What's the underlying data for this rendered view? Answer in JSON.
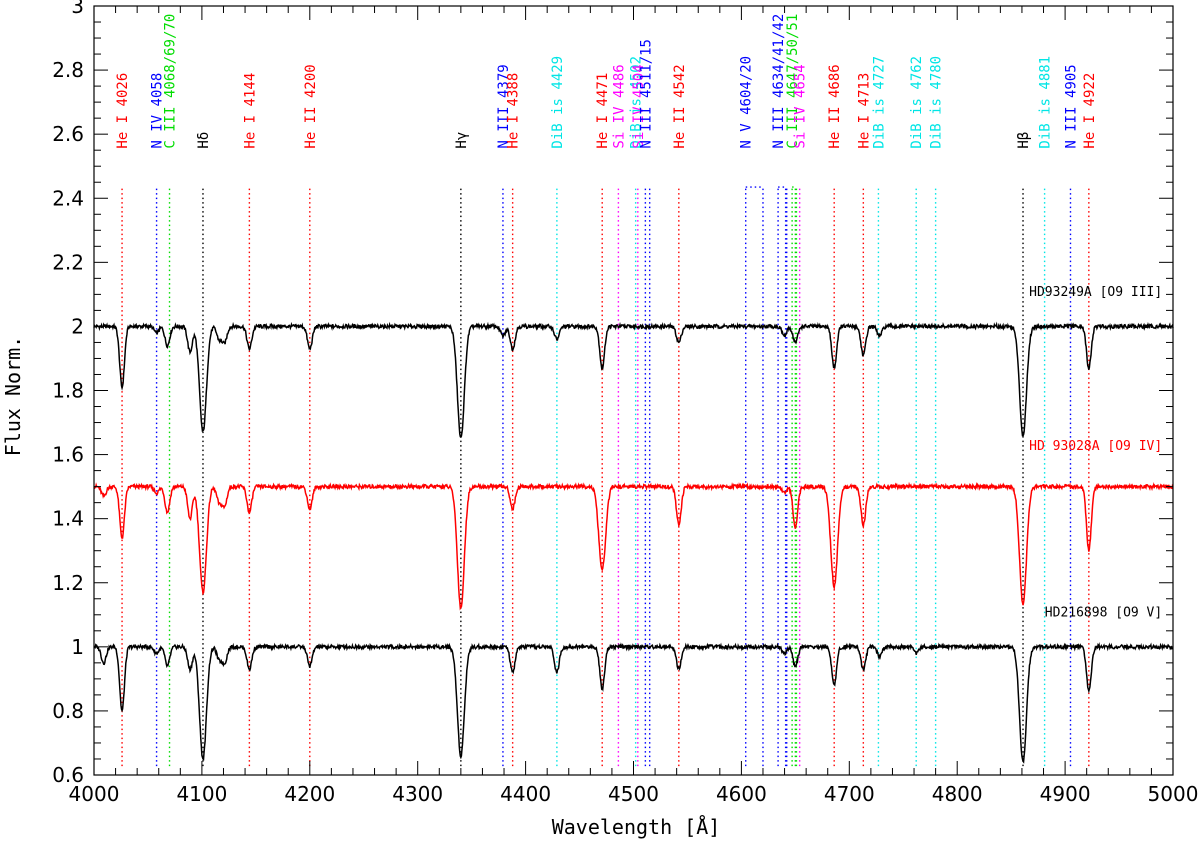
{
  "chart_data": {
    "type": "line",
    "xlabel": "Wavelength [Å]",
    "ylabel": "Flux Norm.",
    "xlim": [
      4000,
      5000
    ],
    "ylim": [
      0.6,
      3.0
    ],
    "x_ticks": [
      4000,
      4100,
      4200,
      4300,
      4400,
      4500,
      4600,
      4700,
      4800,
      4900,
      5000
    ],
    "y_ticks": [
      0.6,
      0.8,
      1,
      1.2,
      1.4,
      1.6,
      1.8,
      2,
      2.2,
      2.4,
      2.6,
      2.8,
      3
    ],
    "grid": false,
    "series": [
      {
        "name": "HD93249A [O9 III]",
        "color": "#000000",
        "continuum": 2.0,
        "lines": [
          [
            4026,
            0.19
          ],
          [
            4058,
            0.02
          ],
          [
            4068,
            0.06
          ],
          [
            4089,
            0.08
          ],
          [
            4101,
            0.33
          ],
          [
            4116,
            0.04
          ],
          [
            4121,
            0.05
          ],
          [
            4144,
            0.07
          ],
          [
            4200,
            0.07
          ],
          [
            4340,
            0.35
          ],
          [
            4379,
            0.03
          ],
          [
            4388,
            0.07
          ],
          [
            4429,
            0.04
          ],
          [
            4471,
            0.13
          ],
          [
            4542,
            0.05
          ],
          [
            4640,
            0.03
          ],
          [
            4650,
            0.05
          ],
          [
            4686,
            0.13
          ],
          [
            4713,
            0.09
          ],
          [
            4728,
            0.03
          ],
          [
            4861,
            0.34
          ],
          [
            4922,
            0.13
          ]
        ]
      },
      {
        "name": "HD 93028A  [O9 IV]",
        "color": "#ff0000",
        "continuum": 1.5,
        "lines": [
          [
            4009,
            0.03
          ],
          [
            4026,
            0.16
          ],
          [
            4058,
            0.02
          ],
          [
            4068,
            0.08
          ],
          [
            4089,
            0.1
          ],
          [
            4101,
            0.33
          ],
          [
            4116,
            0.05
          ],
          [
            4121,
            0.06
          ],
          [
            4144,
            0.08
          ],
          [
            4200,
            0.07
          ],
          [
            4340,
            0.38
          ],
          [
            4388,
            0.07
          ],
          [
            4471,
            0.26
          ],
          [
            4542,
            0.12
          ],
          [
            4640,
            0.02
          ],
          [
            4650,
            0.13
          ],
          [
            4686,
            0.31
          ],
          [
            4713,
            0.12
          ],
          [
            4861,
            0.37
          ],
          [
            4922,
            0.2
          ]
        ]
      },
      {
        "name": "HD216898 [O9 V]",
        "color": "#000000",
        "continuum": 1.0,
        "lines": [
          [
            4009,
            0.05
          ],
          [
            4026,
            0.2
          ],
          [
            4058,
            0.02
          ],
          [
            4068,
            0.06
          ],
          [
            4089,
            0.07
          ],
          [
            4101,
            0.35
          ],
          [
            4116,
            0.04
          ],
          [
            4121,
            0.05
          ],
          [
            4144,
            0.07
          ],
          [
            4200,
            0.06
          ],
          [
            4340,
            0.34
          ],
          [
            4388,
            0.08
          ],
          [
            4429,
            0.08
          ],
          [
            4471,
            0.13
          ],
          [
            4542,
            0.07
          ],
          [
            4640,
            0.02
          ],
          [
            4650,
            0.06
          ],
          [
            4686,
            0.12
          ],
          [
            4713,
            0.07
          ],
          [
            4728,
            0.03
          ],
          [
            4762,
            0.02
          ],
          [
            4861,
            0.36
          ],
          [
            4922,
            0.14
          ]
        ]
      }
    ],
    "line_ids": [
      {
        "wl": 4026,
        "label": "He I 4026",
        "color": "#ff0000"
      },
      {
        "wl": 4058,
        "label": "N IV 4058",
        "color": "#0000ff"
      },
      {
        "wl": 4070,
        "label": "C III 4068/69/70",
        "color": "#00dd00"
      },
      {
        "wl": 4101,
        "label": "Hδ",
        "color": "#000000"
      },
      {
        "wl": 4144,
        "label": "He I 4144",
        "color": "#ff0000"
      },
      {
        "wl": 4200,
        "label": "He II 4200",
        "color": "#ff0000"
      },
      {
        "wl": 4340,
        "label": "Hγ",
        "color": "#000000"
      },
      {
        "wl": 4379,
        "label": "N III 4379",
        "color": "#0000ff"
      },
      {
        "wl": 4388,
        "label": "He I 4388",
        "color": "#ff0000"
      },
      {
        "wl": 4429,
        "label": "DiB is 4429",
        "color": "#00e5e5"
      },
      {
        "wl": 4471,
        "label": "He I 4471",
        "color": "#ff0000"
      },
      {
        "wl": 4486,
        "label": "Si IV 4486",
        "color": "#ff00ff"
      },
      {
        "wl": 4502,
        "label": "DiB is 4502",
        "color": "#00e5e5"
      },
      {
        "wl": 4504,
        "label": "Si IV 4504",
        "color": "#ff00ff"
      },
      {
        "wl": 4511,
        "label": "N III 4511/15",
        "color": "#0000ff"
      },
      {
        "wl": 4542,
        "label": "He II 4542",
        "color": "#ff0000"
      },
      {
        "wl": 4604,
        "label": "N V 4604/20",
        "color": "#0000ff"
      },
      {
        "wl": 4634,
        "label": "N III 4634/41/42",
        "color": "#0000ff"
      },
      {
        "wl": 4647,
        "label": "C III 4647/50/51",
        "color": "#00dd00"
      },
      {
        "wl": 4654,
        "label": "Si IV 4654",
        "color": "#ff00ff"
      },
      {
        "wl": 4686,
        "label": "He II 4686",
        "color": "#ff0000"
      },
      {
        "wl": 4713,
        "label": "He I 4713",
        "color": "#ff0000"
      },
      {
        "wl": 4727,
        "label": "DiB is 4727",
        "color": "#00e5e5"
      },
      {
        "wl": 4762,
        "label": "DiB is 4762",
        "color": "#00e5e5"
      },
      {
        "wl": 4780,
        "label": "DiB is 4780",
        "color": "#00e5e5"
      },
      {
        "wl": 4861,
        "label": "Hβ",
        "color": "#000000"
      },
      {
        "wl": 4881,
        "label": "DiB is 4881",
        "color": "#00e5e5"
      },
      {
        "wl": 4905,
        "label": "N III 4905",
        "color": "#0000ff"
      },
      {
        "wl": 4922,
        "label": "He I 4922",
        "color": "#ff0000"
      }
    ],
    "marker_lines": [
      {
        "wl": 4026,
        "color": "#ff0000"
      },
      {
        "wl": 4058,
        "color": "#0000ff"
      },
      {
        "wl": 4070,
        "color": "#00dd00"
      },
      {
        "wl": 4101,
        "color": "#000000"
      },
      {
        "wl": 4144,
        "color": "#ff0000"
      },
      {
        "wl": 4200,
        "color": "#ff0000"
      },
      {
        "wl": 4340,
        "color": "#000000"
      },
      {
        "wl": 4379,
        "color": "#0000ff"
      },
      {
        "wl": 4388,
        "color": "#ff0000"
      },
      {
        "wl": 4429,
        "color": "#00e5e5"
      },
      {
        "wl": 4471,
        "color": "#ff0000"
      },
      {
        "wl": 4486,
        "color": "#ff00ff"
      },
      {
        "wl": 4502,
        "color": "#00e5e5"
      },
      {
        "wl": 4504,
        "color": "#ff00ff"
      },
      {
        "wl": 4511,
        "color": "#0000ff"
      },
      {
        "wl": 4515,
        "color": "#0000ff"
      },
      {
        "wl": 4542,
        "color": "#ff0000"
      },
      {
        "wl": 4604,
        "color": "#0000ff"
      },
      {
        "wl": 4620,
        "color": "#0000ff"
      },
      {
        "wl": 4634,
        "color": "#0000ff"
      },
      {
        "wl": 4641,
        "color": "#0000ff"
      },
      {
        "wl": 4642,
        "color": "#0000ff"
      },
      {
        "wl": 4647,
        "color": "#00dd00"
      },
      {
        "wl": 4650,
        "color": "#00dd00"
      },
      {
        "wl": 4651,
        "color": "#00dd00"
      },
      {
        "wl": 4654,
        "color": "#ff00ff"
      },
      {
        "wl": 4686,
        "color": "#ff0000"
      },
      {
        "wl": 4713,
        "color": "#ff0000"
      },
      {
        "wl": 4727,
        "color": "#00e5e5"
      },
      {
        "wl": 4762,
        "color": "#00e5e5"
      },
      {
        "wl": 4780,
        "color": "#00e5e5"
      },
      {
        "wl": 4861,
        "color": "#000000"
      },
      {
        "wl": 4881,
        "color": "#00e5e5"
      },
      {
        "wl": 4905,
        "color": "#0000ff"
      },
      {
        "wl": 4922,
        "color": "#ff0000"
      }
    ]
  }
}
